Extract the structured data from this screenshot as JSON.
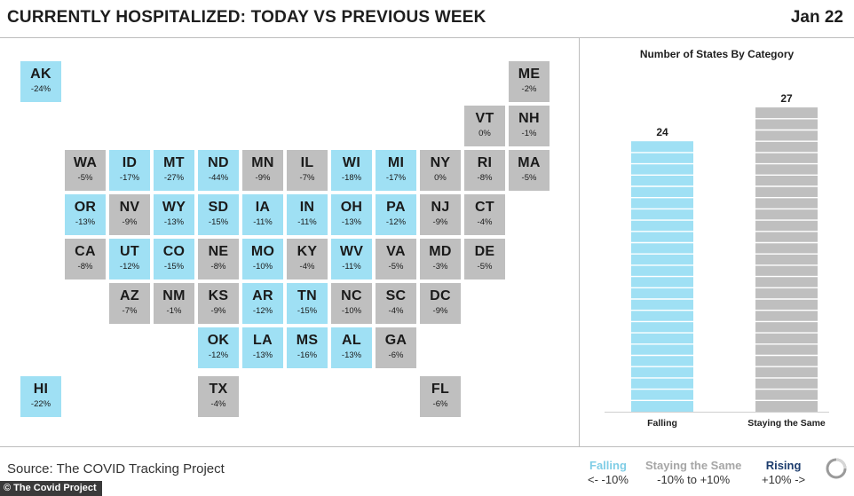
{
  "header": {
    "title": "CURRENTLY HOSPITALIZED: TODAY VS PREVIOUS WEEK",
    "date": "Jan 22"
  },
  "colors": {
    "falling": "#9fe0f4",
    "same": "#bfbfbf",
    "rising": "#1d3d6e"
  },
  "states": [
    {
      "abbr": "AK",
      "value": "-24%",
      "category": "falling"
    },
    {
      "abbr": "ME",
      "value": "-2%",
      "category": "same"
    },
    {
      "abbr": "VT",
      "value": "0%",
      "category": "same"
    },
    {
      "abbr": "NH",
      "value": "-1%",
      "category": "same"
    },
    {
      "abbr": "WA",
      "value": "-5%",
      "category": "same"
    },
    {
      "abbr": "ID",
      "value": "-17%",
      "category": "falling"
    },
    {
      "abbr": "MT",
      "value": "-27%",
      "category": "falling"
    },
    {
      "abbr": "ND",
      "value": "-44%",
      "category": "falling"
    },
    {
      "abbr": "MN",
      "value": "-9%",
      "category": "same"
    },
    {
      "abbr": "IL",
      "value": "-7%",
      "category": "same"
    },
    {
      "abbr": "WI",
      "value": "-18%",
      "category": "falling"
    },
    {
      "abbr": "MI",
      "value": "-17%",
      "category": "falling"
    },
    {
      "abbr": "NY",
      "value": "0%",
      "category": "same"
    },
    {
      "abbr": "RI",
      "value": "-8%",
      "category": "same"
    },
    {
      "abbr": "MA",
      "value": "-5%",
      "category": "same"
    },
    {
      "abbr": "OR",
      "value": "-13%",
      "category": "falling"
    },
    {
      "abbr": "NV",
      "value": "-9%",
      "category": "same"
    },
    {
      "abbr": "WY",
      "value": "-13%",
      "category": "falling"
    },
    {
      "abbr": "SD",
      "value": "-15%",
      "category": "falling"
    },
    {
      "abbr": "IA",
      "value": "-11%",
      "category": "falling"
    },
    {
      "abbr": "IN",
      "value": "-11%",
      "category": "falling"
    },
    {
      "abbr": "OH",
      "value": "-13%",
      "category": "falling"
    },
    {
      "abbr": "PA",
      "value": "-12%",
      "category": "falling"
    },
    {
      "abbr": "NJ",
      "value": "-9%",
      "category": "same"
    },
    {
      "abbr": "CT",
      "value": "-4%",
      "category": "same"
    },
    {
      "abbr": "CA",
      "value": "-8%",
      "category": "same"
    },
    {
      "abbr": "UT",
      "value": "-12%",
      "category": "falling"
    },
    {
      "abbr": "CO",
      "value": "-15%",
      "category": "falling"
    },
    {
      "abbr": "NE",
      "value": "-8%",
      "category": "same"
    },
    {
      "abbr": "MO",
      "value": "-10%",
      "category": "falling"
    },
    {
      "abbr": "KY",
      "value": "-4%",
      "category": "same"
    },
    {
      "abbr": "WV",
      "value": "-11%",
      "category": "falling"
    },
    {
      "abbr": "VA",
      "value": "-5%",
      "category": "same"
    },
    {
      "abbr": "MD",
      "value": "-3%",
      "category": "same"
    },
    {
      "abbr": "DE",
      "value": "-5%",
      "category": "same"
    },
    {
      "abbr": "AZ",
      "value": "-7%",
      "category": "same"
    },
    {
      "abbr": "NM",
      "value": "-1%",
      "category": "same"
    },
    {
      "abbr": "KS",
      "value": "-9%",
      "category": "same"
    },
    {
      "abbr": "AR",
      "value": "-12%",
      "category": "falling"
    },
    {
      "abbr": "TN",
      "value": "-15%",
      "category": "falling"
    },
    {
      "abbr": "NC",
      "value": "-10%",
      "category": "same"
    },
    {
      "abbr": "SC",
      "value": "-4%",
      "category": "same"
    },
    {
      "abbr": "DC",
      "value": "-9%",
      "category": "same"
    },
    {
      "abbr": "OK",
      "value": "-12%",
      "category": "falling"
    },
    {
      "abbr": "LA",
      "value": "-13%",
      "category": "falling"
    },
    {
      "abbr": "MS",
      "value": "-16%",
      "category": "falling"
    },
    {
      "abbr": "AL",
      "value": "-13%",
      "category": "falling"
    },
    {
      "abbr": "GA",
      "value": "-6%",
      "category": "same"
    },
    {
      "abbr": "HI",
      "value": "-22%",
      "category": "falling"
    },
    {
      "abbr": "TX",
      "value": "-4%",
      "category": "same"
    },
    {
      "abbr": "FL",
      "value": "-6%",
      "category": "same"
    }
  ],
  "chart_data": {
    "type": "bar",
    "title": "Number of States By Category",
    "categories": [
      "Falling",
      "Staying the Same"
    ],
    "values": [
      24,
      27
    ],
    "colors": [
      "#9fe0f4",
      "#bfbfbf"
    ],
    "ylim": [
      0,
      30
    ],
    "grid": false
  },
  "footer": {
    "source": "Source: The COVID Tracking Project",
    "credit": "© The Covid Project"
  },
  "legend": {
    "falling": {
      "label": "Falling",
      "range": "<-  -10%"
    },
    "same": {
      "label": "Staying the Same",
      "range": "-10% to +10%"
    },
    "rising": {
      "label": "Rising",
      "range": "+10%  ->"
    }
  }
}
